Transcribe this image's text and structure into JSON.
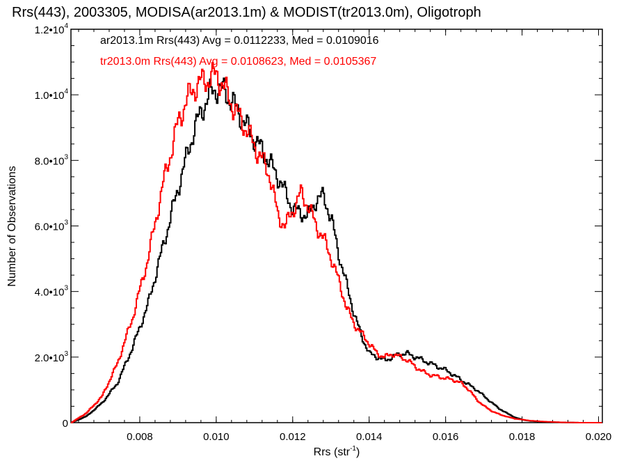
{
  "chart_data": {
    "type": "line",
    "title": "Rrs(443), 2003305, MODISA(ar2013.1m) & MODIST(tr2013.0m), Oligotroph",
    "xlabel": "Rrs (str",
    "xlabel_sup": "-1",
    "xlabel_close": ")",
    "ylabel": "Number of Observations",
    "xlim": [
      0.0062,
      0.0201
    ],
    "ylim": [
      0,
      12000
    ],
    "x_ticks": [
      0.008,
      0.01,
      0.012,
      0.014,
      0.016,
      0.018,
      0.02
    ],
    "x_tick_labels": [
      "0.008",
      "0.010",
      "0.012",
      "0.014",
      "0.016",
      "0.018",
      "0.020"
    ],
    "y_ticks": [
      0,
      2000,
      4000,
      6000,
      8000,
      10000,
      12000
    ],
    "y_tick_labels": [
      {
        "base": "0",
        "exp": ""
      },
      {
        "base": "2.0•10",
        "exp": "3"
      },
      {
        "base": "4.0•10",
        "exp": "3"
      },
      {
        "base": "6.0•10",
        "exp": "3"
      },
      {
        "base": "8.0•10",
        "exp": "3"
      },
      {
        "base": "1.0•10",
        "exp": "4"
      },
      {
        "base": "1.2•10",
        "exp": "4"
      }
    ],
    "grid": false,
    "legend": "top-left",
    "step": true,
    "series": [
      {
        "name": "ar2013.1m Rrs(443) Avg = 0.0112233, Med = 0.0109016",
        "color": "#000000",
        "x": [
          0.0062,
          0.0066,
          0.007,
          0.0074,
          0.0078,
          0.0082,
          0.0086,
          0.009,
          0.0094,
          0.0096,
          0.0098,
          0.01,
          0.0102,
          0.0104,
          0.0106,
          0.0108,
          0.011,
          0.0112,
          0.0114,
          0.0116,
          0.0118,
          0.012,
          0.0122,
          0.0124,
          0.0126,
          0.0128,
          0.013,
          0.0132,
          0.0134,
          0.0136,
          0.0138,
          0.014,
          0.0142,
          0.0144,
          0.0146,
          0.0148,
          0.015,
          0.0152,
          0.0154,
          0.0156,
          0.0158,
          0.016,
          0.0162,
          0.0164,
          0.0166,
          0.0168,
          0.017,
          0.0172,
          0.0174,
          0.0176,
          0.0178,
          0.018,
          0.0182,
          0.0186,
          0.019,
          0.0195,
          0.0201
        ],
        "y": [
          0,
          200,
          600,
          1200,
          2300,
          3600,
          5400,
          7200,
          8900,
          9500,
          10000,
          10200,
          10100,
          9800,
          9400,
          9000,
          8600,
          8300,
          7900,
          7500,
          7000,
          6500,
          6400,
          6300,
          6800,
          6900,
          6200,
          5100,
          4200,
          3300,
          2600,
          2100,
          2000,
          1900,
          2000,
          2100,
          2100,
          2000,
          1900,
          1800,
          1700,
          1600,
          1450,
          1300,
          1150,
          1000,
          800,
          600,
          420,
          280,
          160,
          90,
          50,
          20,
          10,
          0,
          0
        ]
      },
      {
        "name": "tr2013.0m Rrs(443) Avg = 0.0108623, Med = 0.0105367",
        "color": "#ff0000",
        "x": [
          0.0062,
          0.0066,
          0.007,
          0.0074,
          0.0078,
          0.0082,
          0.0086,
          0.009,
          0.0092,
          0.0094,
          0.0096,
          0.0098,
          0.01,
          0.0102,
          0.0104,
          0.0106,
          0.0108,
          0.011,
          0.0112,
          0.0114,
          0.0116,
          0.0118,
          0.012,
          0.0122,
          0.0124,
          0.0126,
          0.0128,
          0.013,
          0.0132,
          0.0134,
          0.0136,
          0.0138,
          0.014,
          0.0142,
          0.0144,
          0.0146,
          0.0148,
          0.015,
          0.0152,
          0.0154,
          0.0156,
          0.0158,
          0.016,
          0.0162,
          0.0164,
          0.0166,
          0.0168,
          0.017,
          0.0172,
          0.0174,
          0.0176,
          0.0178,
          0.0182,
          0.0186,
          0.019,
          0.0195,
          0.0201
        ],
        "y": [
          0,
          300,
          800,
          1800,
          3200,
          5000,
          7300,
          9200,
          9800,
          10200,
          10400,
          10500,
          10600,
          10200,
          9700,
          9300,
          8900,
          8400,
          8000,
          7500,
          6300,
          6000,
          6500,
          7000,
          6600,
          6000,
          5600,
          5000,
          4300,
          3500,
          3000,
          2700,
          2400,
          2100,
          2000,
          2100,
          2000,
          1900,
          1700,
          1550,
          1450,
          1400,
          1350,
          1300,
          1200,
          1000,
          700,
          500,
          350,
          250,
          180,
          120,
          60,
          30,
          10,
          0,
          0
        ]
      }
    ]
  }
}
